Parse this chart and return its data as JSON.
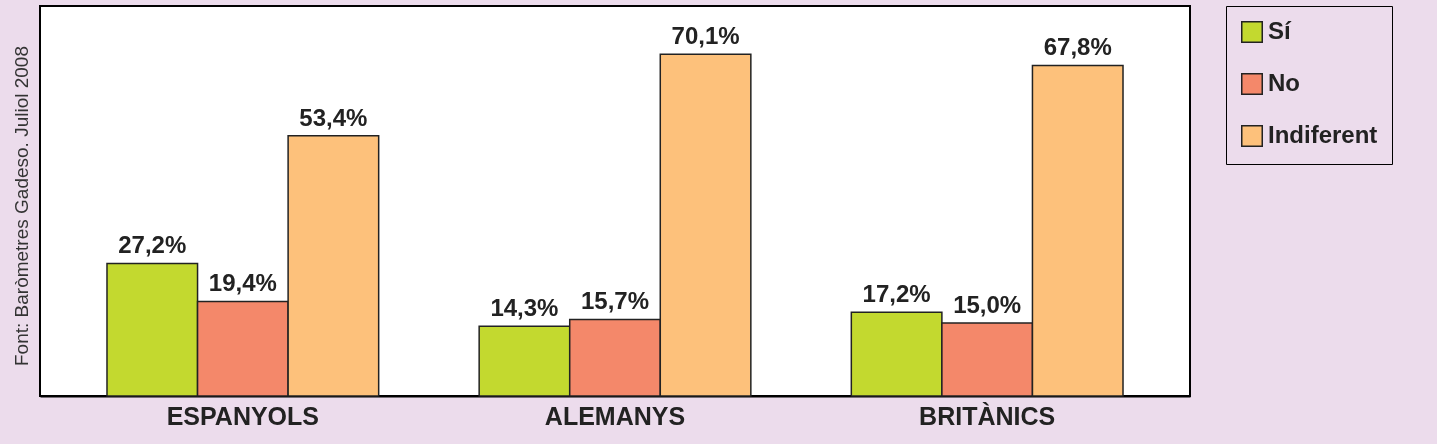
{
  "chart_data": {
    "type": "bar",
    "categories": [
      "ESPANYOLS",
      "ALEMANYS",
      "BRITÀNICS"
    ],
    "series": [
      {
        "name": "Sí",
        "color": "#c3d92f",
        "values": [
          27.2,
          14.3,
          17.2
        ],
        "value_labels": [
          "27,2%",
          "14,3%",
          "17,2%"
        ]
      },
      {
        "name": "No",
        "color": "#f4886a",
        "values": [
          19.4,
          15.7,
          15.0
        ],
        "value_labels": [
          "19,4%",
          "15,7%",
          "15,0%"
        ]
      },
      {
        "name": "Indiferent",
        "color": "#fdc17b",
        "values": [
          53.4,
          70.1,
          67.8
        ],
        "value_labels": [
          "53,4%",
          "70,1%",
          "67,8%"
        ]
      }
    ],
    "legend": "right",
    "annotations": [
      "Font: Baròmetres Gadeso. Juliol 2008"
    ]
  }
}
